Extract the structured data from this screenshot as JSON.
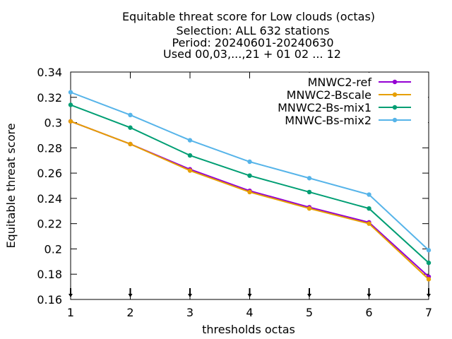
{
  "chart_data": {
    "type": "line",
    "title_lines": [
      "Equitable threat score  for Low clouds (octas)",
      "Selection: ALL    632 stations",
      "Period: 20240601-20240630",
      "Used 00,03,...,21 + 01 02 ... 12"
    ],
    "xlabel": "thresholds octas",
    "ylabel": "Equitable threat score",
    "x": [
      1,
      2,
      3,
      4,
      5,
      6,
      7
    ],
    "xlim": [
      1,
      7
    ],
    "ylim": [
      0.16,
      0.34
    ],
    "x_ticks": [
      "1",
      "2",
      "3",
      "4",
      "5",
      "6",
      "7"
    ],
    "y_ticks": [
      "0.16",
      "0.18",
      "0.2",
      "0.22",
      "0.24",
      "0.26",
      "0.28",
      "0.3",
      "0.32",
      "0.34"
    ],
    "legend_position": "top-right",
    "grid": false,
    "series": [
      {
        "name": "MNWC2-ref",
        "color": "#9400d3",
        "values": [
          0.301,
          0.283,
          0.263,
          0.246,
          0.233,
          0.221,
          0.178
        ]
      },
      {
        "name": "MNWC2-Bscale",
        "color": "#e69f00",
        "values": [
          0.301,
          0.283,
          0.262,
          0.245,
          0.232,
          0.22,
          0.176
        ]
      },
      {
        "name": "MNWC2-Bs-mix1",
        "color": "#009e73",
        "values": [
          0.314,
          0.296,
          0.274,
          0.258,
          0.245,
          0.232,
          0.189
        ]
      },
      {
        "name": "MNWC-Bs-mix2",
        "color": "#56b4e9",
        "values": [
          0.324,
          0.306,
          0.286,
          0.269,
          0.256,
          0.243,
          0.199
        ]
      }
    ]
  }
}
